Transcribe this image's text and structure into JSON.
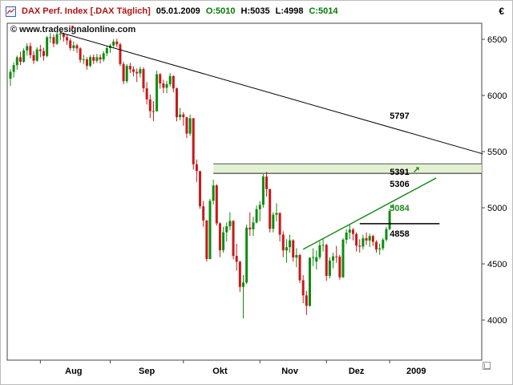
{
  "header": {
    "symbol": "DAX Perf. Index [.DAX  Täglich]",
    "date": "05.01.2009",
    "open": "O:5010",
    "high": "H:5035",
    "low": "L:4998",
    "close": "C:5014",
    "currency": "€"
  },
  "watermark": "© www.tradesignalonline.com",
  "chart_data": {
    "type": "candlestick",
    "title": "DAX Perf. Index [.DAX Täglich]",
    "xlabel": "",
    "ylabel": "",
    "ylim": [
      3643,
      6643
    ],
    "y_ticks": [
      6500,
      6000,
      5500,
      5000,
      4500,
      4000
    ],
    "grid": false,
    "legend": false,
    "x_labels": [
      {
        "label": "Aug",
        "bar": 19
      },
      {
        "label": "Sep",
        "bar": 41
      },
      {
        "label": "Okt",
        "bar": 63
      },
      {
        "label": "Nov",
        "bar": 84
      },
      {
        "label": "Dez",
        "bar": 104
      },
      {
        "label": "2009",
        "bar": 122
      }
    ],
    "month_start_bars": [
      9,
      30,
      52,
      75,
      95,
      114
    ],
    "colors": {
      "up": "#0e8c0e",
      "down": "#c81919",
      "trend_black": "#000000",
      "trend_green": "#1f8a1f",
      "zone_fill": "#dcedc8",
      "zone_border": "#555555",
      "axis": "#444444"
    },
    "bars": [
      [
        6150,
        6235,
        6085,
        6210
      ],
      [
        6210,
        6295,
        6160,
        6270
      ],
      [
        6270,
        6355,
        6230,
        6340
      ],
      [
        6340,
        6390,
        6270,
        6300
      ],
      [
        6300,
        6420,
        6290,
        6400
      ],
      [
        6400,
        6465,
        6355,
        6440
      ],
      [
        6440,
        6470,
        6330,
        6360
      ],
      [
        6360,
        6395,
        6280,
        6310
      ],
      [
        6310,
        6430,
        6300,
        6410
      ],
      [
        6410,
        6450,
        6340,
        6396
      ],
      [
        6396,
        6425,
        6310,
        6352
      ],
      [
        6352,
        6530,
        6340,
        6518
      ],
      [
        6518,
        6555,
        6470,
        6519
      ],
      [
        6519,
        6545,
        6430,
        6461
      ],
      [
        6461,
        6565,
        6450,
        6545
      ],
      [
        6545,
        6575,
        6490,
        6550
      ],
      [
        6550,
        6560,
        6480,
        6520
      ],
      [
        6520,
        6540,
        6450,
        6490
      ],
      [
        6490,
        6510,
        6400,
        6422
      ],
      [
        6422,
        6480,
        6395,
        6446
      ],
      [
        6446,
        6460,
        6380,
        6419
      ],
      [
        6419,
        6430,
        6290,
        6317
      ],
      [
        6317,
        6360,
        6280,
        6321
      ],
      [
        6321,
        6340,
        6230,
        6264
      ],
      [
        6264,
        6360,
        6250,
        6342
      ],
      [
        6342,
        6365,
        6280,
        6309
      ],
      [
        6309,
        6370,
        6290,
        6340
      ],
      [
        6340,
        6365,
        6285,
        6321
      ],
      [
        6321,
        6395,
        6300,
        6376
      ],
      [
        6376,
        6440,
        6350,
        6422
      ],
      [
        6422,
        6460,
        6380,
        6444
      ],
      [
        6444,
        6500,
        6420,
        6480
      ],
      [
        6480,
        6505,
        6430,
        6455
      ],
      [
        6455,
        6470,
        6260,
        6280
      ],
      [
        6280,
        6300,
        6100,
        6127
      ],
      [
        6127,
        6280,
        6110,
        6263
      ],
      [
        6263,
        6290,
        6200,
        6233
      ],
      [
        6233,
        6260,
        6170,
        6210
      ],
      [
        6210,
        6240,
        6120,
        6196
      ],
      [
        6196,
        6255,
        6160,
        6235
      ],
      [
        6235,
        6250,
        6030,
        6064
      ],
      [
        6064,
        6120,
        5920,
        5965
      ],
      [
        5965,
        6010,
        5800,
        5861
      ],
      [
        5861,
        5950,
        5770,
        5860
      ],
      [
        5860,
        6220,
        5855,
        6189
      ],
      [
        6189,
        6200,
        6060,
        6107
      ],
      [
        6107,
        6140,
        6020,
        6068
      ],
      [
        6068,
        6130,
        6020,
        6101
      ],
      [
        6101,
        6200,
        6080,
        6173
      ],
      [
        6173,
        6180,
        6030,
        6063
      ],
      [
        6063,
        6070,
        5770,
        5807
      ],
      [
        5807,
        5890,
        5780,
        5831
      ],
      [
        5831,
        5850,
        5730,
        5806
      ],
      [
        5806,
        5810,
        5620,
        5660
      ],
      [
        5660,
        5830,
        5640,
        5797
      ],
      [
        5797,
        5800,
        5340,
        5387
      ],
      [
        5387,
        5430,
        5230,
        5326
      ],
      [
        5326,
        5330,
        4990,
        5013
      ],
      [
        5013,
        5060,
        4830,
        4887
      ],
      [
        4887,
        4890,
        4520,
        4544
      ],
      [
        4544,
        5080,
        4540,
        5062
      ],
      [
        5062,
        5250,
        5030,
        5199
      ],
      [
        5199,
        5210,
        4840,
        4861
      ],
      [
        4861,
        4870,
        4560,
        4622
      ],
      [
        4622,
        4830,
        4600,
        4781
      ],
      [
        4781,
        4870,
        4700,
        4835
      ],
      [
        4835,
        4960,
        4800,
        4883
      ],
      [
        4883,
        4890,
        4540,
        4571
      ],
      [
        4571,
        4680,
        4440,
        4519
      ],
      [
        4519,
        4530,
        4250,
        4295
      ],
      [
        4295,
        4400,
        4014,
        4334
      ],
      [
        4334,
        4850,
        4320,
        4823
      ],
      [
        4823,
        4960,
        4750,
        4808
      ],
      [
        4808,
        4920,
        4750,
        4869
      ],
      [
        4869,
        5020,
        4860,
        4987
      ],
      [
        4987,
        5060,
        4880,
        5026
      ],
      [
        5026,
        5300,
        5000,
        5278
      ],
      [
        5278,
        5320,
        5100,
        5166
      ],
      [
        5166,
        5170,
        4780,
        4813
      ],
      [
        4813,
        4960,
        4780,
        4938
      ],
      [
        4938,
        5040,
        4880,
        4953
      ],
      [
        4953,
        4960,
        4700,
        4761
      ],
      [
        4761,
        4790,
        4560,
        4620
      ],
      [
        4620,
        4720,
        4510,
        4649
      ],
      [
        4649,
        4760,
        4600,
        4710
      ],
      [
        4710,
        4720,
        4520,
        4557
      ],
      [
        4557,
        4640,
        4470,
        4579
      ],
      [
        4579,
        4590,
        4330,
        4354
      ],
      [
        4354,
        4400,
        4150,
        4220
      ],
      [
        4220,
        4260,
        4045,
        4127
      ],
      [
        4127,
        4560,
        4120,
        4554
      ],
      [
        4554,
        4640,
        4480,
        4560
      ],
      [
        4520,
        4620,
        4450,
        4560
      ],
      [
        4560,
        4700,
        4540,
        4666
      ],
      [
        4666,
        4720,
        4610,
        4669
      ],
      [
        4669,
        4680,
        4350,
        4394
      ],
      [
        4394,
        4560,
        4370,
        4531
      ],
      [
        4531,
        4600,
        4460,
        4567
      ],
      [
        4567,
        4660,
        4510,
        4564
      ],
      [
        4564,
        4580,
        4360,
        4381
      ],
      [
        4381,
        4730,
        4375,
        4715
      ],
      [
        4715,
        4810,
        4680,
        4779
      ],
      [
        4779,
        4850,
        4720,
        4805
      ],
      [
        4805,
        4820,
        4710,
        4767
      ],
      [
        4767,
        4780,
        4610,
        4663
      ],
      [
        4663,
        4720,
        4600,
        4654
      ],
      [
        4654,
        4760,
        4630,
        4729
      ],
      [
        4729,
        4780,
        4670,
        4708
      ],
      [
        4708,
        4770,
        4650,
        4748
      ],
      [
        4748,
        4760,
        4660,
        4696
      ],
      [
        4696,
        4710,
        4600,
        4629
      ],
      [
        4629,
        4680,
        4580,
        4639
      ],
      [
        4639,
        4730,
        4620,
        4715
      ],
      [
        4715,
        4830,
        4700,
        4810
      ],
      [
        4810,
        4990,
        4800,
        4973
      ],
      [
        5010,
        5035,
        4998,
        5014
      ]
    ],
    "zone": {
      "bar_start": 61,
      "price_top": 5391,
      "price_bottom": 5306
    },
    "lines": [
      {
        "name": "downtrend-line",
        "b1": 15,
        "p1": 6560,
        "b2": 142,
        "p2": 5480,
        "color": "#000000",
        "width": 1
      },
      {
        "name": "uptrend-line",
        "b1": 88,
        "p1": 4630,
        "b2": 128,
        "p2": 5265,
        "color": "#1f8a1f",
        "width": 1.5
      },
      {
        "name": "support-line-4858",
        "b1": 105,
        "p1": 4858,
        "b2": 129,
        "p2": 4858,
        "color": "#000000",
        "width": 1.5
      }
    ],
    "annotations": [
      {
        "text": "5797",
        "bar": 117,
        "price": 5821,
        "color": "#000000"
      },
      {
        "text": "5391",
        "bar": 117,
        "price": 5321,
        "color": "#000000"
      },
      {
        "text": "↗",
        "bar": 122,
        "price": 5343,
        "color": "#1f8a1f"
      },
      {
        "text": "5306",
        "bar": 117,
        "price": 5214,
        "color": "#000000"
      },
      {
        "text": "5084",
        "bar": 117,
        "price": 5000,
        "color": "#1f8a1f"
      },
      {
        "text": "4858",
        "bar": 117,
        "price": 4771,
        "color": "#000000"
      }
    ]
  }
}
